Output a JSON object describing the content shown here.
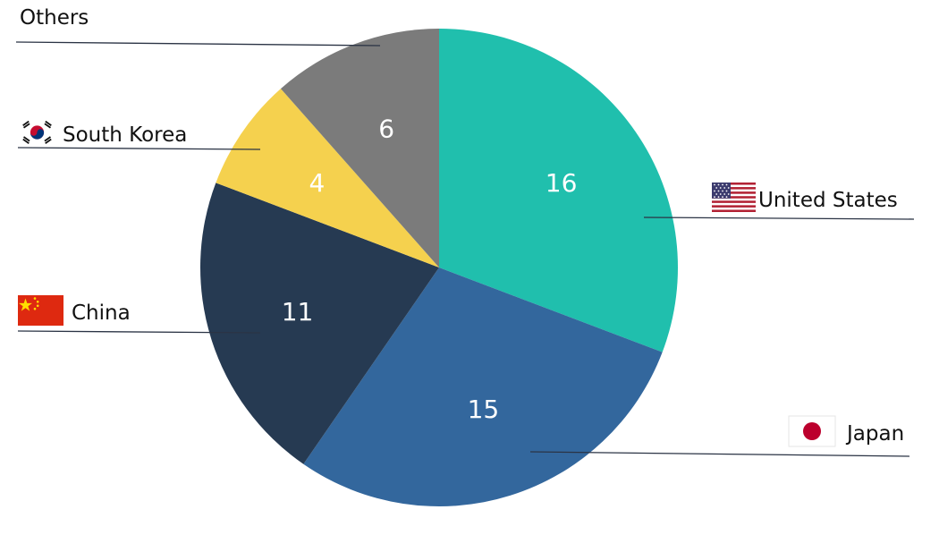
{
  "chart_data": {
    "type": "pie",
    "title": "",
    "start_angle_deg": 0,
    "direction": "clockwise",
    "slices": [
      {
        "label": "United States",
        "value": 16,
        "color": "#20bfad",
        "flag_icon": "us-flag-icon"
      },
      {
        "label": "Japan",
        "value": 15,
        "color": "#33679d",
        "flag_icon": "japan-flag-icon"
      },
      {
        "label": "China",
        "value": 11,
        "color": "#263a52",
        "flag_icon": "china-flag-icon"
      },
      {
        "label": "South Korea",
        "value": 4,
        "color": "#f5d14e",
        "flag_icon": "south-korea-flag-icon"
      },
      {
        "label": "Others",
        "value": 6,
        "color": "#7b7b7b",
        "flag_icon": ""
      }
    ]
  }
}
